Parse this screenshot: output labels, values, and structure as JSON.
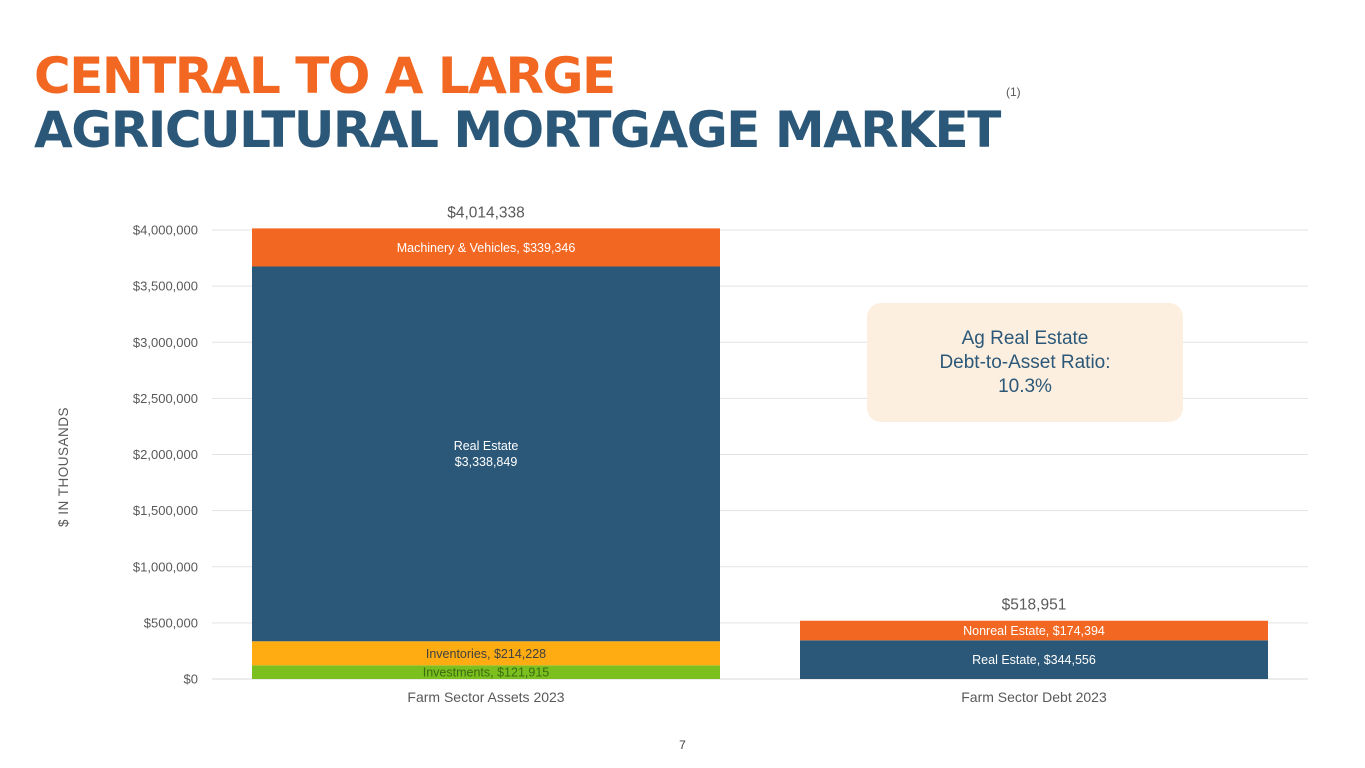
{
  "title": {
    "line1": "CENTRAL TO A LARGE",
    "line2": "AGRICULTURAL MORTGAGE MARKET",
    "footnote": "(1)"
  },
  "callout": {
    "line1": "Ag Real Estate",
    "line2": "Debt-to-Asset Ratio:",
    "line3": "10.3%"
  },
  "page_number": "7",
  "colors": {
    "orange": "#F26722",
    "navy": "#2B5879",
    "gold": "#FFAB12",
    "green": "#7CC01F",
    "callout_bg": "#FDEFDF"
  },
  "chart_data": {
    "type": "bar",
    "stacked": true,
    "ylabel": "$ IN THOUSANDS",
    "ylim": [
      0,
      4000000
    ],
    "yticks": [
      "$0",
      "$500,000",
      "$1,000,000",
      "$1,500,000",
      "$2,000,000",
      "$2,500,000",
      "$3,000,000",
      "$3,500,000",
      "$4,000,000"
    ],
    "grid": true,
    "categories": [
      "Farm Sector Assets 2023",
      "Farm Sector Debt 2023"
    ],
    "totals": [
      "$4,014,338",
      "$518,951"
    ],
    "stacks": [
      {
        "category": "Farm Sector Assets 2023",
        "segments": [
          {
            "value": 121915,
            "color": "#7CC01F",
            "label": "Investments, $121,915",
            "label_color": "#3B6B10"
          },
          {
            "value": 214228,
            "color": "#FFAB12",
            "label": "Inventories, $214,228",
            "label_color": "#404040"
          },
          {
            "value": 3338849,
            "color": "#2B5879",
            "label": "Real Estate",
            "label2": "$3,338,849",
            "label_color": "#FFFFFF"
          },
          {
            "value": 339346,
            "color": "#F26722",
            "label": "Machinery & Vehicles, $339,346",
            "label_color": "#FFFFFF"
          }
        ]
      },
      {
        "category": "Farm Sector Debt 2023",
        "segments": [
          {
            "value": 344556,
            "color": "#2B5879",
            "label": "Real Estate, $344,556",
            "label_color": "#FFFFFF"
          },
          {
            "value": 174394,
            "color": "#F26722",
            "label": "Nonreal Estate, $174,394",
            "label_color": "#FFFFFF"
          }
        ]
      }
    ]
  }
}
